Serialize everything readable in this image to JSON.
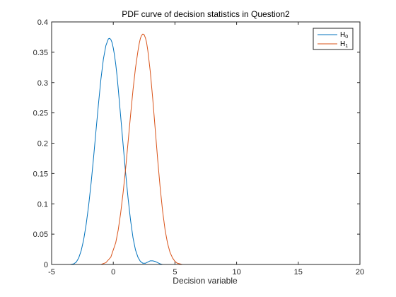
{
  "chart_data": {
    "type": "line",
    "title": "PDF curve of decision statistics in Question2",
    "xlabel": "Decision variable",
    "ylabel": "",
    "xlim": [
      -5,
      20
    ],
    "ylim": [
      0,
      0.4
    ],
    "xticks": [
      -5,
      0,
      5,
      10,
      15,
      20
    ],
    "yticks": [
      0,
      0.05,
      0.1,
      0.15,
      0.2,
      0.25,
      0.3,
      0.35,
      0.4
    ],
    "xtick_labels": [
      "-5",
      "0",
      "5",
      "10",
      "15",
      "20"
    ],
    "ytick_labels": [
      "0",
      "0.05",
      "0.1",
      "0.15",
      "0.2",
      "0.25",
      "0.3",
      "0.35",
      "0.4"
    ],
    "grid": false,
    "legend_position": "top-right",
    "series": [
      {
        "name": "H0",
        "label_main": "H",
        "label_sub": "0",
        "color": "#0072BD",
        "x": [
          -3.5,
          -3.2,
          -3.0,
          -2.8,
          -2.6,
          -2.4,
          -2.2,
          -2.0,
          -1.8,
          -1.6,
          -1.4,
          -1.2,
          -1.0,
          -0.8,
          -0.6,
          -0.4,
          -0.3,
          -0.2,
          -0.1,
          0.0,
          0.1,
          0.2,
          0.3,
          0.4,
          0.6,
          0.8,
          1.0,
          1.2,
          1.4,
          1.6,
          1.8,
          2.0,
          2.2,
          2.4,
          2.6,
          2.8,
          3.0,
          3.2,
          3.4,
          3.6,
          3.8,
          4.0,
          4.2
        ],
        "y": [
          0.0,
          0.001,
          0.004,
          0.011,
          0.023,
          0.041,
          0.066,
          0.097,
          0.134,
          0.176,
          0.221,
          0.265,
          0.306,
          0.339,
          0.361,
          0.372,
          0.373,
          0.371,
          0.366,
          0.357,
          0.345,
          0.33,
          0.312,
          0.29,
          0.244,
          0.197,
          0.151,
          0.109,
          0.073,
          0.044,
          0.024,
          0.012,
          0.005,
          0.002,
          0.002,
          0.004,
          0.006,
          0.006,
          0.005,
          0.003,
          0.001,
          0.0,
          0.0
        ]
      },
      {
        "name": "H1",
        "label_main": "H",
        "label_sub": "1",
        "color": "#D95319",
        "x": [
          -1.0,
          -0.6,
          -0.2,
          0.2,
          0.4,
          0.6,
          0.8,
          1.0,
          1.2,
          1.4,
          1.6,
          1.8,
          2.0,
          2.1,
          2.2,
          2.3,
          2.4,
          2.5,
          2.6,
          2.7,
          2.8,
          3.0,
          3.2,
          3.4,
          3.6,
          3.8,
          4.0,
          4.2,
          4.4,
          4.6,
          4.8,
          5.0,
          5.2,
          5.4,
          5.6,
          5.8
        ],
        "y": [
          0.0,
          0.003,
          0.012,
          0.036,
          0.057,
          0.085,
          0.119,
          0.158,
          0.202,
          0.246,
          0.288,
          0.324,
          0.352,
          0.364,
          0.373,
          0.378,
          0.38,
          0.379,
          0.374,
          0.366,
          0.353,
          0.318,
          0.273,
          0.223,
          0.173,
          0.127,
          0.088,
          0.057,
          0.035,
          0.02,
          0.011,
          0.005,
          0.002,
          0.001,
          0.0,
          0.0
        ]
      }
    ]
  }
}
